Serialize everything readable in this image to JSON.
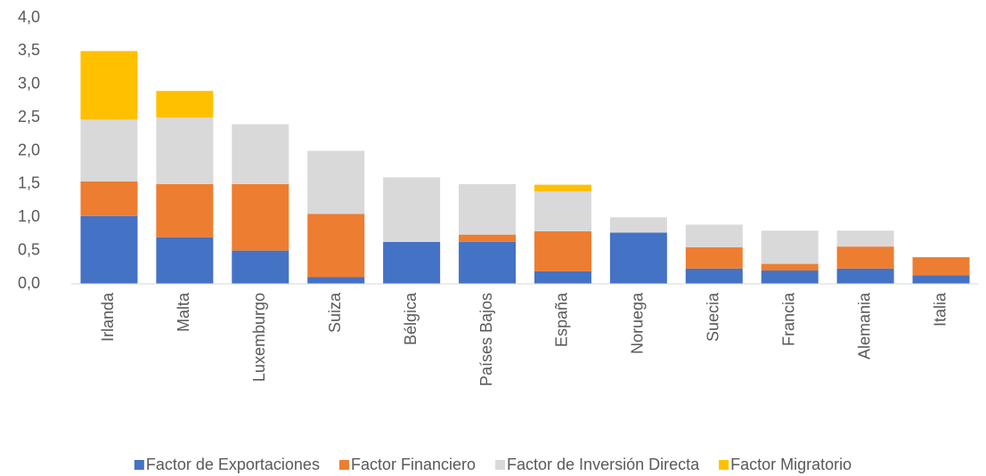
{
  "chart_data": {
    "type": "stacked_bar",
    "categories": [
      "Irlanda",
      "Malta",
      "Luxemburgo",
      "Suiza",
      "Bélgica",
      "Países Bajos",
      "España",
      "Noruega",
      "Suecia",
      "Francia",
      "Alemania",
      "Italia"
    ],
    "series": [
      {
        "name": "Factor de Exportaciones",
        "color": "#4472c4",
        "values": [
          1.02,
          0.7,
          0.5,
          0.1,
          0.63,
          0.63,
          0.19,
          0.77,
          0.23,
          0.2,
          0.23,
          0.13
        ]
      },
      {
        "name": "Factor Financiero",
        "color": "#ed7d31",
        "values": [
          0.52,
          0.8,
          1.0,
          0.95,
          0,
          0.11,
          0.6,
          0,
          0.32,
          0.1,
          0.33,
          0.27
        ]
      },
      {
        "name": "Factor de Inversión Directa",
        "color": "#d9d9d9",
        "values": [
          0.93,
          1.0,
          0.9,
          0.95,
          0.97,
          0.76,
          0.6,
          0.23,
          0.34,
          0.5,
          0.24,
          0
        ]
      },
      {
        "name": "Factor Migratorio",
        "color": "#ffc000",
        "values": [
          1.03,
          0.4,
          0,
          0,
          0,
          0,
          0.1,
          0,
          0,
          0,
          0,
          0
        ]
      }
    ],
    "ylim": [
      0,
      4
    ],
    "yticks": [
      {
        "value": 0,
        "label": "0,0"
      },
      {
        "value": 0.5,
        "label": "0,5"
      },
      {
        "value": 1,
        "label": "1,0"
      },
      {
        "value": 1.5,
        "label": "1,5"
      },
      {
        "value": 2,
        "label": "2,0"
      },
      {
        "value": 2.5,
        "label": "2,5"
      },
      {
        "value": 3,
        "label": "3,0"
      },
      {
        "value": 3.5,
        "label": "3,5"
      },
      {
        "value": 4,
        "label": "4,0"
      }
    ],
    "legend": "bottom"
  }
}
